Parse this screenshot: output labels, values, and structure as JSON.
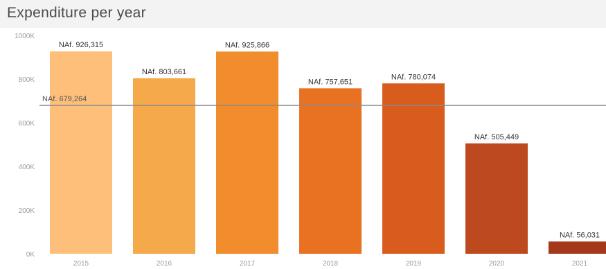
{
  "header": {
    "title": "Expenditure per year"
  },
  "chart_data": {
    "type": "bar",
    "title": "Expenditure per year",
    "xlabel": "",
    "ylabel": "",
    "categories": [
      "2015",
      "2016",
      "2017",
      "2018",
      "2019",
      "2020",
      "2021"
    ],
    "values": [
      926315,
      803661,
      925866,
      757651,
      780074,
      505449,
      56031
    ],
    "data_labels": [
      "NAf. 926,315",
      "NAf. 803,661",
      "NAf. 925,866",
      "NAf. 757,651",
      "NAf. 780,074",
      "NAf. 505,449",
      "NAf. 56,031"
    ],
    "colors": [
      "#fdbf7a",
      "#f6a94a",
      "#f18d2c",
      "#e87122",
      "#d85c1e",
      "#bd4a1e",
      "#a3391a"
    ],
    "ylim": [
      0,
      1000000
    ],
    "yticks": [
      {
        "value": 0,
        "label": "0K"
      },
      {
        "value": 200000,
        "label": "200K"
      },
      {
        "value": 400000,
        "label": "400K"
      },
      {
        "value": 600000,
        "label": "600K"
      },
      {
        "value": 800000,
        "label": "800K"
      },
      {
        "value": 1000000,
        "label": "1000K"
      }
    ],
    "reference_line": {
      "value": 679264,
      "label": "NAf. 679,264",
      "color": "#8a8a8a"
    },
    "grid": false
  }
}
